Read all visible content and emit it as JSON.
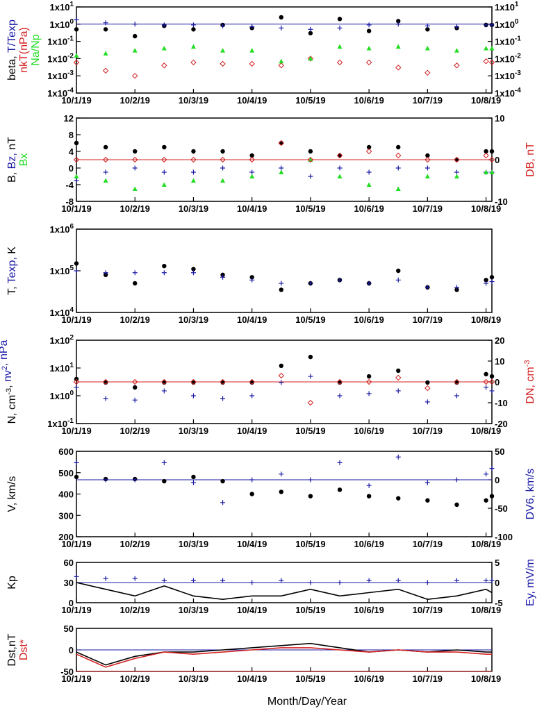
{
  "figure": {
    "x_axis_title": "Month/Day/Year",
    "x_tick_labels": [
      "10/1/19",
      "10/2/19",
      "10/3/19",
      "10/4/19",
      "10/5/19",
      "10/6/19",
      "10/7/19",
      "10/8/19"
    ]
  },
  "colors": {
    "black": "#000000",
    "blue": "#1a1aa6",
    "red": "#d42020",
    "green": "#22dd22",
    "ref_line_blue": "#1a1aa6",
    "ref_line_red": "#d42020"
  },
  "chart_data": [
    {
      "type": "scatter",
      "panel": "beta-temperature-ratio",
      "ylabel_parts": [
        {
          "text": "beta, ",
          "color": "black"
        },
        {
          "text": "T/Texp",
          "color": "blue"
        },
        {
          "text": "nkT(nPa)",
          "color": "red",
          "line": 2
        },
        {
          "text": "Na/Np",
          "color": "green",
          "line": 3
        }
      ],
      "y_scale": "log",
      "ylim": [
        0.0001,
        10
      ],
      "y_tick_labels": [
        "1x10",
        "1x10",
        "1x10",
        "1x10",
        "1x10",
        "1x10"
      ],
      "y_tick_exponents": [
        "1",
        "0",
        "-1",
        "-2",
        "-3",
        "-4"
      ],
      "x": [
        0.0,
        0.5,
        1.0,
        1.5,
        2.0,
        2.5,
        3.0,
        3.5,
        4.0,
        4.5,
        5.0,
        5.5,
        6.0,
        6.5,
        7.0,
        7.1
      ],
      "series": [
        {
          "label": "beta",
          "color": "black",
          "marker": "dot",
          "values": [
            0.5,
            0.5,
            0.2,
            0.8,
            0.5,
            0.9,
            0.6,
            2.5,
            0.3,
            2.0,
            0.4,
            1.5,
            0.5,
            0.6,
            0.9,
            0.9
          ]
        },
        {
          "label": "T/Texp",
          "color": "blue",
          "marker": "plus",
          "values": [
            1.8,
            1.2,
            1.0,
            0.9,
            0.9,
            0.8,
            0.7,
            0.6,
            0.5,
            0.6,
            0.9,
            1.0,
            0.8,
            0.7,
            0.9,
            0.9
          ]
        },
        {
          "label": "nkT(nPa)",
          "color": "red",
          "marker": "diamond",
          "values": [
            0.006,
            0.002,
            0.001,
            0.004,
            0.006,
            0.005,
            0.005,
            0.004,
            0.01,
            0.006,
            0.006,
            0.003,
            0.0015,
            0.004,
            0.007,
            0.006
          ]
        },
        {
          "label": "Na/Np",
          "color": "green",
          "marker": "triangle",
          "values": [
            0.015,
            0.02,
            0.03,
            0.04,
            0.05,
            0.03,
            0.03,
            0.007,
            0.01,
            0.05,
            0.04,
            0.05,
            0.04,
            0.03,
            0.04,
            0.04
          ]
        }
      ],
      "ref_lines": [
        {
          "value": 1,
          "color": "blue",
          "axis": "left"
        }
      ],
      "secondary_axis": {
        "scale": "log",
        "ylim": [
          0.0001,
          10
        ],
        "tick_labels": [
          "1x10",
          "1x10",
          "1x10",
          "1x10",
          "1x10",
          "1x10"
        ],
        "tick_exponents": [
          "1",
          "0",
          "-1",
          "-2",
          "-3",
          "-4"
        ]
      }
    },
    {
      "type": "scatter",
      "panel": "magnetic-field",
      "ylabel_parts": [
        {
          "text": "B, ",
          "color": "black"
        },
        {
          "text": "Bz, ",
          "color": "blue"
        },
        {
          "text": "nT",
          "color": "black"
        },
        {
          "text": "Bx",
          "color": "green",
          "line": 2
        }
      ],
      "ylabel_right_parts": [
        {
          "text": "DB, nT",
          "color": "red"
        }
      ],
      "y_scale": "linear",
      "ylim": [
        -8,
        12
      ],
      "y_tick_labels": [
        "12",
        "8",
        "4",
        "0",
        "-4",
        "-8"
      ],
      "x": [
        0.0,
        0.5,
        1.0,
        1.5,
        2.0,
        2.5,
        3.0,
        3.5,
        4.0,
        4.5,
        5.0,
        5.5,
        6.0,
        6.5,
        7.0,
        7.1
      ],
      "series": [
        {
          "label": "B",
          "color": "black",
          "marker": "dot",
          "values": [
            6,
            5,
            4,
            5,
            4,
            4,
            3,
            6,
            4,
            3,
            5,
            5,
            3,
            2,
            4,
            4
          ]
        },
        {
          "label": "Bz",
          "color": "blue",
          "marker": "plus",
          "values": [
            -3,
            -1,
            0,
            -1,
            -1,
            0,
            -1,
            0,
            -2,
            0,
            -1,
            0,
            0,
            -1,
            -1,
            -1
          ]
        },
        {
          "label": "Bx",
          "color": "green",
          "marker": "triangle",
          "values": [
            -2,
            -3,
            -5,
            -4,
            -3,
            -3,
            -2,
            -1,
            2,
            -2,
            -4,
            -5,
            -2,
            -2,
            -1,
            -1
          ]
        },
        {
          "label": "DB",
          "color": "red",
          "marker": "diamond",
          "axis": "right",
          "values": [
            0,
            0,
            0,
            0,
            0,
            0,
            0,
            4,
            0,
            1,
            2,
            1,
            0,
            0,
            1,
            0
          ]
        }
      ],
      "ref_lines": [
        {
          "value": 0,
          "color": "red",
          "axis": "right"
        }
      ],
      "secondary_axis": {
        "scale": "linear",
        "ylim": [
          -10,
          10
        ],
        "tick_labels": [
          "10",
          "0",
          "-10"
        ]
      }
    },
    {
      "type": "scatter",
      "panel": "temperature",
      "ylabel_parts": [
        {
          "text": "T, ",
          "color": "black"
        },
        {
          "text": "Texp, ",
          "color": "blue"
        },
        {
          "text": "K",
          "color": "black"
        }
      ],
      "y_scale": "log",
      "ylim": [
        10000,
        1000000
      ],
      "y_tick_labels": [
        "1x10",
        "1x10",
        "1x10"
      ],
      "y_tick_exponents": [
        "6",
        "5",
        "4"
      ],
      "x": [
        0.0,
        0.5,
        1.0,
        1.5,
        2.0,
        2.5,
        3.0,
        3.5,
        4.0,
        4.5,
        5.0,
        5.5,
        6.0,
        6.5,
        7.0,
        7.1
      ],
      "series": [
        {
          "label": "T",
          "color": "black",
          "marker": "dot",
          "values": [
            150000,
            80000,
            50000,
            130000,
            110000,
            80000,
            70000,
            35000,
            50000,
            60000,
            50000,
            100000,
            40000,
            35000,
            60000,
            70000
          ]
        },
        {
          "label": "Texp",
          "color": "blue",
          "marker": "plus",
          "values": [
            100000,
            90000,
            90000,
            90000,
            90000,
            70000,
            60000,
            50000,
            50000,
            60000,
            50000,
            60000,
            40000,
            40000,
            50000,
            55000
          ]
        }
      ]
    },
    {
      "type": "scatter",
      "panel": "density-pressure",
      "ylabel_parts": [
        {
          "text": "N, cm",
          "color": "black"
        },
        {
          "text": "-3",
          "color": "black",
          "sup": true
        },
        {
          "text": ", ",
          "color": "black"
        },
        {
          "text": "nv",
          "color": "blue"
        },
        {
          "text": "2",
          "color": "blue",
          "sup": true
        },
        {
          "text": ", nPa",
          "color": "blue"
        }
      ],
      "ylabel_right_parts": [
        {
          "text": "DN, cm",
          "color": "red"
        },
        {
          "text": "-3",
          "color": "red",
          "sup": true
        }
      ],
      "y_scale": "log",
      "ylim": [
        0.1,
        100
      ],
      "y_tick_labels": [
        "1x10",
        "1x10",
        "1x10",
        "1x10"
      ],
      "y_tick_exponents": [
        "2",
        "1",
        "0",
        "-1"
      ],
      "x": [
        0.0,
        0.5,
        1.0,
        1.5,
        2.0,
        2.5,
        3.0,
        3.5,
        4.0,
        4.5,
        5.0,
        5.5,
        6.0,
        6.5,
        7.0,
        7.1
      ],
      "series": [
        {
          "label": "N",
          "color": "black",
          "marker": "dot",
          "values": [
            4,
            3,
            2,
            3,
            3,
            3,
            3,
            12,
            25,
            3,
            5,
            8,
            3,
            3,
            6,
            5
          ]
        },
        {
          "label": "nv2",
          "color": "blue",
          "marker": "plus",
          "values": [
            2,
            0.8,
            0.7,
            1.5,
            1.0,
            0.8,
            1.0,
            3.0,
            5.0,
            1.0,
            1.2,
            1.5,
            0.6,
            1.0,
            2.0,
            1.5
          ]
        },
        {
          "label": "DN",
          "color": "red",
          "marker": "diamond",
          "axis": "right",
          "values": [
            0,
            0,
            0,
            0,
            0,
            0,
            0,
            3,
            -10,
            0,
            0,
            2,
            -3,
            0,
            0,
            0
          ]
        }
      ],
      "ref_lines": [
        {
          "value": 0,
          "color": "red",
          "axis": "right"
        }
      ],
      "secondary_axis": {
        "scale": "linear",
        "ylim": [
          -20,
          20
        ],
        "tick_labels": [
          "20",
          "10",
          "0",
          "-10",
          "-20"
        ]
      }
    },
    {
      "type": "scatter",
      "panel": "velocity",
      "ylabel_parts": [
        {
          "text": "V, km/s",
          "color": "black"
        }
      ],
      "ylabel_right_parts": [
        {
          "text": "DV6, km/s",
          "color": "blue"
        }
      ],
      "y_scale": "linear",
      "ylim": [
        200,
        600
      ],
      "y_tick_labels": [
        "600",
        "500",
        "400",
        "300",
        "200"
      ],
      "x": [
        0.0,
        0.5,
        1.0,
        1.5,
        2.0,
        2.5,
        3.0,
        3.5,
        4.0,
        4.5,
        5.0,
        5.5,
        6.0,
        6.5,
        7.0,
        7.1
      ],
      "series": [
        {
          "label": "V",
          "color": "black",
          "marker": "dot",
          "values": [
            480,
            470,
            470,
            460,
            480,
            460,
            400,
            410,
            390,
            420,
            390,
            380,
            370,
            350,
            370,
            390
          ]
        },
        {
          "label": "DV6",
          "color": "blue",
          "marker": "plus",
          "axis": "right",
          "values": [
            30,
            0,
            0,
            30,
            -5,
            -40,
            0,
            10,
            0,
            30,
            -10,
            40,
            -5,
            0,
            10,
            20
          ]
        }
      ],
      "ref_lines": [
        {
          "value": 0,
          "color": "blue",
          "axis": "right"
        }
      ],
      "secondary_axis": {
        "scale": "linear",
        "ylim": [
          -100,
          50
        ],
        "tick_labels": [
          "50",
          "0",
          "-50",
          "-100"
        ]
      }
    },
    {
      "type": "line",
      "panel": "kp-ey",
      "ylabel_parts": [
        {
          "text": "Kp",
          "color": "black"
        }
      ],
      "ylabel_right_parts": [
        {
          "text": "Ey, mV/m",
          "color": "blue"
        }
      ],
      "y_scale": "linear",
      "ylim": [
        0,
        60
      ],
      "y_tick_labels": [
        "60",
        "30",
        "0"
      ],
      "x": [
        0.0,
        0.5,
        1.0,
        1.5,
        2.0,
        2.5,
        3.0,
        3.5,
        4.0,
        4.5,
        5.0,
        5.5,
        6.0,
        6.5,
        7.0,
        7.1
      ],
      "series": [
        {
          "label": "Kp",
          "color": "black",
          "marker": "line",
          "values": [
            30,
            20,
            10,
            25,
            10,
            5,
            10,
            10,
            20,
            10,
            15,
            20,
            5,
            10,
            20,
            15
          ]
        },
        {
          "label": "Ey",
          "color": "blue",
          "marker": "plus",
          "axis": "right",
          "values": [
            1.5,
            1.0,
            1.0,
            0.5,
            0.5,
            0.5,
            0.0,
            0.5,
            0.0,
            0.0,
            0.5,
            0.5,
            0.0,
            0.5,
            0.5,
            0.5
          ]
        }
      ],
      "ref_lines": [
        {
          "value": 0,
          "color": "blue",
          "axis": "right"
        }
      ],
      "secondary_axis": {
        "scale": "linear",
        "ylim": [
          -5,
          5
        ],
        "tick_labels": [
          "5",
          "0",
          "-5"
        ]
      }
    },
    {
      "type": "line",
      "panel": "dst",
      "ylabel_parts": [
        {
          "text": "Dst,nT",
          "color": "black"
        },
        {
          "text": "Dst*",
          "color": "red",
          "line": 2
        }
      ],
      "y_scale": "linear",
      "ylim": [
        -50,
        50
      ],
      "y_tick_labels": [
        "50",
        "0",
        "-50"
      ],
      "x": [
        0.0,
        0.5,
        1.0,
        1.5,
        2.0,
        2.5,
        3.0,
        3.5,
        4.0,
        4.5,
        5.0,
        5.5,
        6.0,
        6.5,
        7.0,
        7.1
      ],
      "series": [
        {
          "label": "Dst",
          "color": "black",
          "marker": "line",
          "values": [
            -5,
            -35,
            -15,
            -5,
            -5,
            0,
            5,
            10,
            15,
            5,
            -5,
            0,
            -5,
            0,
            -5,
            -5
          ]
        },
        {
          "label": "Dst*",
          "color": "red",
          "marker": "line",
          "values": [
            -10,
            -40,
            -20,
            -5,
            -10,
            -5,
            0,
            5,
            5,
            0,
            -5,
            0,
            -5,
            -5,
            -10,
            -10
          ]
        }
      ],
      "ref_lines": [
        {
          "value": 0,
          "color": "blue",
          "axis": "left"
        },
        {
          "value": -50,
          "color": "red",
          "axis": "left"
        }
      ]
    }
  ]
}
